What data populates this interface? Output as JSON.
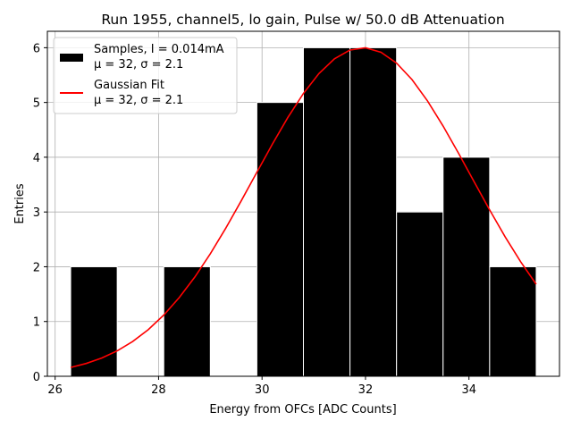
{
  "chart_data": {
    "type": "bar",
    "title": "Run 1955, channel5, lo gain, Pulse w/ 50.0 dB Attenuation",
    "xlabel": "Energy from OFCs [ADC Counts]",
    "ylabel": "Entries",
    "xlim": [
      25.85,
      35.75
    ],
    "ylim": [
      0,
      6.3
    ],
    "grid": true,
    "legend_position": "top-left",
    "x_ticks": [
      26,
      28,
      30,
      32,
      34
    ],
    "y_ticks": [
      0,
      1,
      2,
      3,
      4,
      5,
      6
    ],
    "histogram": {
      "name": "Samples, I = 0.014mA",
      "stats": "μ = 32, σ = 2.1",
      "bin_edges": [
        26.3,
        27.2,
        28.1,
        29.0,
        29.9,
        30.8,
        31.7,
        32.6,
        33.5,
        34.4,
        35.3
      ],
      "counts": [
        2,
        0,
        2,
        0,
        5,
        6,
        6,
        3,
        4,
        2
      ],
      "color": "#000000"
    },
    "fit": {
      "name": "Gaussian Fit",
      "stats": "μ = 32, σ = 2.1",
      "type": "gaussian",
      "amplitude": 6.0,
      "mu": 31.95,
      "sigma": 2.1,
      "x_range": [
        26.3,
        35.3
      ],
      "color": "#ff0000"
    }
  }
}
